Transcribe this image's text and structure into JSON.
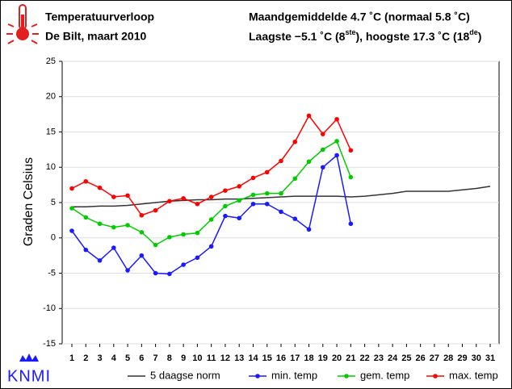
{
  "chart_data": {
    "type": "line",
    "title": "Temperatuurverloop",
    "subtitle": "De Bilt, maart 2010",
    "annotations": [
      "Maandgemiddelde 4.7 ˚C (normaal 5.8 ˚C)",
      [
        "Laagste −5.1 ˚C (8",
        "ste",
        "), hoogste 17.3 ˚C (18",
        "de",
        ")"
      ]
    ],
    "logo": "KNMI",
    "ylabel": "Graden Celsius",
    "categories": [
      "1",
      "2",
      "3",
      "4",
      "5",
      "6",
      "7",
      "8",
      "9",
      "10",
      "11",
      "12",
      "13",
      "14",
      "15",
      "16",
      "17",
      "18",
      "19",
      "20",
      "21",
      "22",
      "23",
      "24",
      "25",
      "26",
      "27",
      "28",
      "29",
      "30",
      "31"
    ],
    "ylim": [
      -15,
      25
    ],
    "yticks": [
      -15,
      -10,
      -5,
      0,
      5,
      10,
      15,
      20,
      25
    ],
    "grid": true,
    "series": [
      {
        "name": "5 daagse norm",
        "color": "#333333",
        "marker": false,
        "values": [
          4.4,
          4.4,
          4.5,
          4.5,
          4.6,
          4.8,
          5.0,
          5.2,
          5.3,
          5.4,
          5.4,
          5.5,
          5.5,
          5.6,
          5.7,
          5.8,
          5.9,
          5.9,
          5.9,
          5.9,
          5.8,
          5.9,
          6.1,
          6.3,
          6.6,
          6.6,
          6.6,
          6.6,
          6.8,
          7.0,
          7.3
        ]
      },
      {
        "name": "min. temp",
        "color": "#1a1aff",
        "marker": true,
        "values": [
          1.0,
          -1.7,
          -3.2,
          -1.4,
          -4.6,
          -2.5,
          -5.0,
          -5.1,
          -3.8,
          -2.8,
          -1.2,
          3.1,
          2.8,
          4.8,
          4.8,
          3.7,
          2.7,
          1.2,
          10.0,
          11.7,
          2.0,
          null,
          null,
          null,
          null,
          null,
          null,
          null,
          null,
          null,
          null
        ]
      },
      {
        "name": "gem. temp",
        "color": "#00cc00",
        "marker": true,
        "values": [
          4.2,
          2.9,
          2.0,
          1.5,
          1.8,
          0.8,
          -1.0,
          0.1,
          0.5,
          0.7,
          2.6,
          4.5,
          5.3,
          6.1,
          6.3,
          6.3,
          8.4,
          10.8,
          12.5,
          13.7,
          8.6,
          null,
          null,
          null,
          null,
          null,
          null,
          null,
          null,
          null,
          null
        ]
      },
      {
        "name": "max. temp",
        "color": "#ff0000",
        "marker": true,
        "values": [
          7.0,
          8.0,
          7.1,
          5.8,
          6.0,
          3.2,
          3.9,
          5.2,
          5.6,
          4.8,
          5.8,
          6.7,
          7.3,
          8.5,
          9.3,
          10.9,
          13.6,
          17.3,
          14.7,
          16.8,
          12.4,
          null,
          null,
          null,
          null,
          null,
          null,
          null,
          null,
          null,
          null
        ]
      }
    ]
  }
}
